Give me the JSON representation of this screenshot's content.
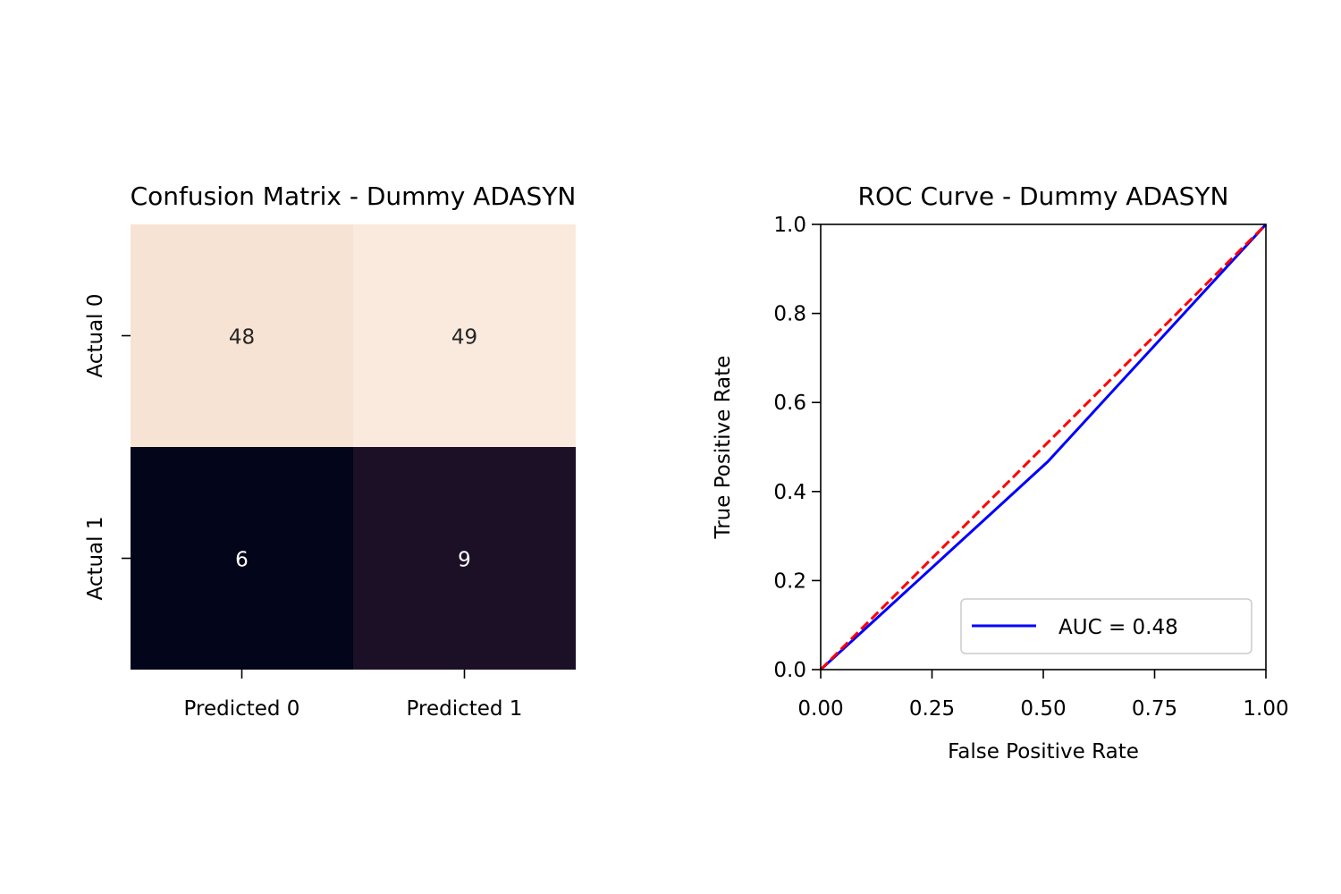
{
  "chart_data": [
    {
      "type": "heatmap",
      "title": "Confusion Matrix - Dummy ADASYN",
      "x_tick_labels": [
        "Predicted 0",
        "Predicted 1"
      ],
      "y_tick_labels": [
        "Actual 0",
        "Actual 1"
      ],
      "values": [
        [
          48,
          49
        ],
        [
          6,
          9
        ]
      ],
      "cell_colors": [
        [
          "#f7e3d4",
          "#faeadd"
        ],
        [
          "#03051a",
          "#1c1027"
        ]
      ],
      "cell_text_colors": [
        [
          "#262626",
          "#262626"
        ],
        [
          "#ffffff",
          "#ffffff"
        ]
      ],
      "colorbar": false
    },
    {
      "type": "line",
      "title": "ROC Curve - Dummy ADASYN",
      "xlabel": "False Positive Rate",
      "ylabel": "True Positive Rate",
      "xlim": [
        0,
        1
      ],
      "ylim": [
        0,
        1
      ],
      "x_ticks": [
        "0.00",
        "0.25",
        "0.50",
        "0.75",
        "1.00"
      ],
      "y_ticks": [
        "0.0",
        "0.2",
        "0.4",
        "0.6",
        "0.8",
        "1.0"
      ],
      "grid": false,
      "legend_position": "lower right",
      "series": [
        {
          "name": "AUC = 0.48",
          "color": "#0000ff",
          "style": "solid",
          "x": [
            0.0,
            0.51,
            1.0
          ],
          "y": [
            0.0,
            0.467,
            1.0
          ]
        },
        {
          "color": "#ff0000",
          "style": "dashed",
          "x": [
            0.0,
            1.0
          ],
          "y": [
            0.0,
            1.0
          ]
        }
      ]
    }
  ]
}
